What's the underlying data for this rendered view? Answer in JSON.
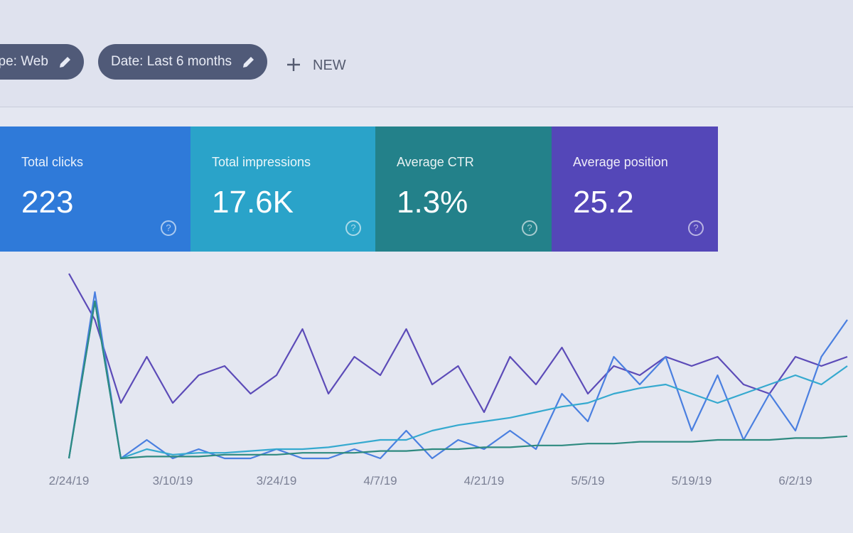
{
  "filters": {
    "chips": [
      "ype: Web",
      "Date: Last 6 months"
    ],
    "new_button": "NEW"
  },
  "metrics": [
    {
      "label": "Total clicks",
      "value": "223",
      "color": "#2f7ad9"
    },
    {
      "label": "Total impressions",
      "value": "17.6K",
      "color": "#2aa3c9"
    },
    {
      "label": "Average CTR",
      "value": "1.3%",
      "color": "#23818a"
    },
    {
      "label": "Average position",
      "value": "25.2",
      "color": "#5447b8"
    }
  ],
  "chart_data": {
    "type": "line",
    "categories": [
      "2/24/19",
      null,
      null,
      null,
      "3/10/19",
      null,
      null,
      null,
      "3/24/19",
      null,
      null,
      null,
      "4/7/19",
      null,
      null,
      null,
      "4/21/19",
      null,
      null,
      null,
      "5/5/19",
      null,
      null,
      null,
      "5/19/19",
      null,
      null,
      null,
      "6/2/19",
      null,
      null
    ],
    "ylim": [
      0,
      100
    ],
    "series": [
      {
        "color": "#5c4bb8",
        "values": [
          100,
          75,
          30,
          55,
          30,
          45,
          50,
          35,
          45,
          70,
          35,
          55,
          45,
          70,
          40,
          50,
          25,
          55,
          40,
          60,
          35,
          50,
          45,
          55,
          50,
          55,
          40,
          35,
          55,
          50,
          55
        ]
      },
      {
        "color": "#4a7fe0",
        "values": [
          0,
          90,
          0,
          10,
          0,
          5,
          0,
          0,
          5,
          0,
          0,
          5,
          0,
          15,
          0,
          10,
          5,
          15,
          5,
          35,
          20,
          55,
          40,
          55,
          15,
          45,
          10,
          35,
          15,
          55,
          75
        ]
      },
      {
        "color": "#35a9cf",
        "values": [
          0,
          85,
          0,
          5,
          2,
          3,
          3,
          4,
          5,
          5,
          6,
          8,
          10,
          10,
          15,
          18,
          20,
          22,
          25,
          28,
          30,
          35,
          38,
          40,
          35,
          30,
          35,
          40,
          45,
          40,
          50
        ]
      },
      {
        "color": "#2e8a80",
        "values": [
          0,
          85,
          0,
          1,
          1,
          1,
          2,
          2,
          2,
          3,
          3,
          3,
          4,
          4,
          5,
          5,
          6,
          6,
          7,
          7,
          8,
          8,
          9,
          9,
          9,
          10,
          10,
          10,
          11,
          11,
          12
        ]
      }
    ]
  }
}
